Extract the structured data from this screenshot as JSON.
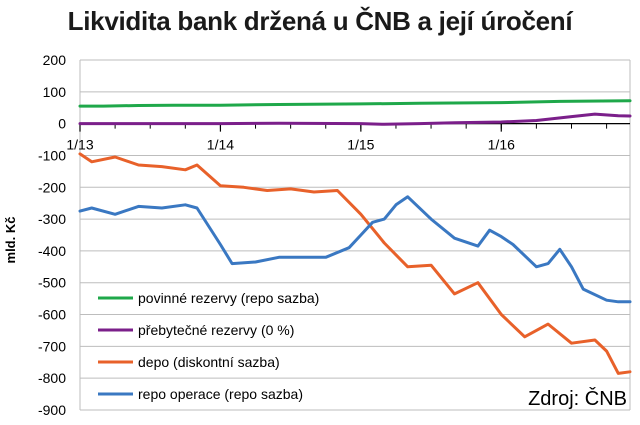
{
  "chart_data": {
    "type": "line",
    "title": "Likvidita bank držená u ČNB a její úročení",
    "ylabel": "mld. Kč",
    "ylim": [
      -900,
      200
    ],
    "yticks": [
      200,
      100,
      0,
      -100,
      -200,
      -300,
      -400,
      -500,
      -600,
      -700,
      -800,
      -900
    ],
    "ytick_labels": [
      "200",
      "100",
      "0",
      "-100",
      "-200",
      "-300",
      "-400",
      "-500",
      "-600",
      "-700",
      "-800",
      "-900"
    ],
    "x_range": [
      "2013-01",
      "2016-12"
    ],
    "xticks": [
      "2013-01",
      "2014-01",
      "2015-01",
      "2016-01"
    ],
    "xtick_labels": [
      "1/13",
      "1/14",
      "1/15",
      "1/16"
    ],
    "grid": true,
    "legend_position": "bottom-left",
    "source": "Zdroj: ČNB",
    "series": [
      {
        "name": "povinné rezervy (repo sazba)",
        "color": "#1fa84a",
        "x": [
          "2013-01",
          "2013-03",
          "2013-06",
          "2013-09",
          "2014-01",
          "2014-06",
          "2015-01",
          "2015-06",
          "2016-01",
          "2016-06",
          "2016-12"
        ],
        "values": [
          55,
          55,
          57,
          58,
          58,
          60,
          62,
          64,
          66,
          70,
          72
        ]
      },
      {
        "name": "přebytečné rezervy (0 %)",
        "color": "#7b1f8a",
        "x": [
          "2013-01",
          "2013-06",
          "2014-01",
          "2014-06",
          "2015-01",
          "2015-03",
          "2015-06",
          "2015-09",
          "2016-01",
          "2016-04",
          "2016-07",
          "2016-09",
          "2016-11",
          "2016-12"
        ],
        "values": [
          0,
          0,
          0,
          1,
          0,
          -2,
          0,
          3,
          5,
          10,
          22,
          30,
          25,
          24
        ]
      },
      {
        "name": "depo (diskontní sazba)",
        "color": "#e8612a",
        "x": [
          "2013-01",
          "2013-02",
          "2013-04",
          "2013-06",
          "2013-08",
          "2013-10",
          "2013-11",
          "2014-01",
          "2014-03",
          "2014-05",
          "2014-07",
          "2014-09",
          "2014-11",
          "2015-01",
          "2015-03",
          "2015-05",
          "2015-07",
          "2015-09",
          "2015-11",
          "2016-01",
          "2016-03",
          "2016-05",
          "2016-07",
          "2016-09",
          "2016-10",
          "2016-11",
          "2016-12"
        ],
        "values": [
          -95,
          -120,
          -105,
          -130,
          -135,
          -145,
          -130,
          -195,
          -200,
          -210,
          -205,
          -215,
          -210,
          -285,
          -375,
          -450,
          -445,
          -535,
          -500,
          -600,
          -670,
          -630,
          -690,
          -680,
          -715,
          -785,
          -780
        ]
      },
      {
        "name": "repo operace (repo sazba)",
        "color": "#3a78c2",
        "x": [
          "2013-01",
          "2013-02",
          "2013-04",
          "2013-06",
          "2013-08",
          "2013-10",
          "2013-11",
          "2014-01",
          "2014-02",
          "2014-04",
          "2014-06",
          "2014-08",
          "2014-10",
          "2014-12",
          "2015-01",
          "2015-02",
          "2015-03",
          "2015-04",
          "2015-05",
          "2015-07",
          "2015-09",
          "2015-11",
          "2015-12",
          "2016-01",
          "2016-02",
          "2016-04",
          "2016-05",
          "2016-06",
          "2016-07",
          "2016-08",
          "2016-10",
          "2016-11",
          "2016-12"
        ],
        "values": [
          -275,
          -265,
          -285,
          -260,
          -265,
          -255,
          -265,
          -380,
          -440,
          -435,
          -420,
          -420,
          -420,
          -390,
          -350,
          -310,
          -300,
          -255,
          -230,
          -300,
          -360,
          -385,
          -335,
          -355,
          -380,
          -450,
          -440,
          -395,
          -450,
          -520,
          -555,
          -560,
          -560
        ]
      }
    ]
  }
}
